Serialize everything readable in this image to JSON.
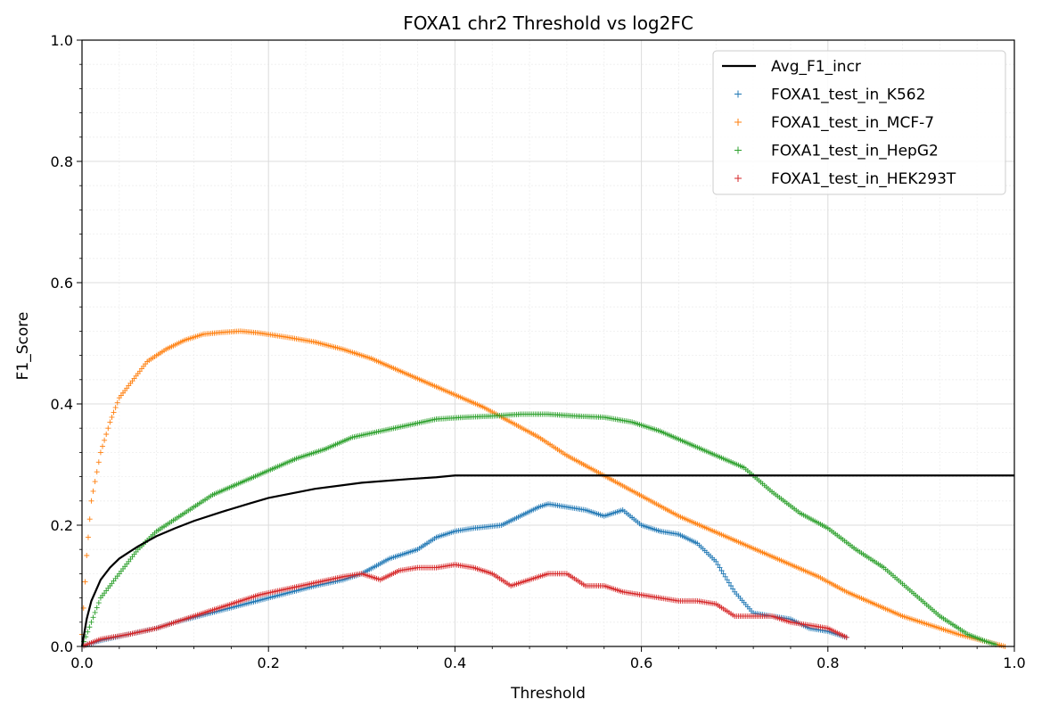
{
  "chart_data": {
    "type": "scatter",
    "title": "FOXA1 chr2 Threshold vs log2FC",
    "xlabel": "Threshold",
    "ylabel": "F1_Score",
    "xlim": [
      0.0,
      1.0
    ],
    "ylim": [
      0.0,
      1.0
    ],
    "xticks": [
      "0.0",
      "0.2",
      "0.4",
      "0.6",
      "0.8",
      "1.0"
    ],
    "yticks": [
      "0.0",
      "0.2",
      "0.4",
      "0.6",
      "0.8",
      "1.0"
    ],
    "grid": true,
    "minor_grid": true,
    "legend_position": "top-right",
    "line": {
      "name": "Avg_F1_incr",
      "color": "#000000",
      "x": [
        0.0,
        0.005,
        0.01,
        0.02,
        0.03,
        0.04,
        0.05,
        0.06,
        0.08,
        0.1,
        0.12,
        0.15,
        0.18,
        0.2,
        0.25,
        0.3,
        0.35,
        0.38,
        0.4,
        0.5,
        0.6,
        0.7,
        0.8,
        0.9,
        1.0
      ],
      "y": [
        0.0,
        0.045,
        0.075,
        0.11,
        0.13,
        0.145,
        0.155,
        0.165,
        0.182,
        0.195,
        0.207,
        0.222,
        0.236,
        0.245,
        0.26,
        0.27,
        0.276,
        0.279,
        0.282,
        0.282,
        0.282,
        0.282,
        0.282,
        0.282,
        0.282
      ]
    },
    "series": [
      {
        "name": "FOXA1_test_in_K562",
        "color": "#1f77b4",
        "x": [
          0.0,
          0.02,
          0.05,
          0.08,
          0.1,
          0.15,
          0.2,
          0.25,
          0.28,
          0.3,
          0.33,
          0.36,
          0.38,
          0.4,
          0.42,
          0.45,
          0.47,
          0.49,
          0.5,
          0.52,
          0.54,
          0.56,
          0.58,
          0.6,
          0.62,
          0.64,
          0.66,
          0.68,
          0.7,
          0.72,
          0.74,
          0.76,
          0.78,
          0.8,
          0.82
        ],
        "y": [
          0.0,
          0.01,
          0.02,
          0.03,
          0.04,
          0.06,
          0.08,
          0.1,
          0.11,
          0.12,
          0.145,
          0.16,
          0.18,
          0.19,
          0.195,
          0.2,
          0.215,
          0.23,
          0.235,
          0.23,
          0.225,
          0.215,
          0.225,
          0.2,
          0.19,
          0.185,
          0.17,
          0.14,
          0.09,
          0.055,
          0.05,
          0.045,
          0.03,
          0.025,
          0.015
        ]
      },
      {
        "name": "FOXA1_test_in_MCF-7",
        "color": "#ff7f0e",
        "x": [
          0.0,
          0.005,
          0.01,
          0.02,
          0.03,
          0.04,
          0.05,
          0.07,
          0.09,
          0.11,
          0.13,
          0.15,
          0.17,
          0.19,
          0.22,
          0.25,
          0.28,
          0.31,
          0.34,
          0.37,
          0.4,
          0.43,
          0.46,
          0.49,
          0.52,
          0.55,
          0.58,
          0.61,
          0.64,
          0.67,
          0.7,
          0.73,
          0.76,
          0.79,
          0.82,
          0.85,
          0.88,
          0.91,
          0.94,
          0.97,
          0.99
        ],
        "y": [
          0.02,
          0.15,
          0.24,
          0.32,
          0.37,
          0.41,
          0.43,
          0.47,
          0.49,
          0.505,
          0.515,
          0.518,
          0.52,
          0.517,
          0.51,
          0.502,
          0.49,
          0.475,
          0.455,
          0.435,
          0.415,
          0.395,
          0.37,
          0.345,
          0.315,
          0.29,
          0.265,
          0.24,
          0.215,
          0.195,
          0.175,
          0.155,
          0.135,
          0.115,
          0.09,
          0.07,
          0.05,
          0.035,
          0.02,
          0.008,
          0.0
        ]
      },
      {
        "name": "FOXA1_test_in_HepG2",
        "color": "#2ca02c",
        "x": [
          0.0,
          0.01,
          0.02,
          0.04,
          0.06,
          0.08,
          0.1,
          0.12,
          0.14,
          0.17,
          0.2,
          0.23,
          0.26,
          0.29,
          0.32,
          0.35,
          0.38,
          0.41,
          0.44,
          0.47,
          0.5,
          0.53,
          0.56,
          0.59,
          0.62,
          0.65,
          0.68,
          0.71,
          0.74,
          0.77,
          0.8,
          0.83,
          0.86,
          0.89,
          0.92,
          0.95,
          0.97,
          0.98
        ],
        "y": [
          0.0,
          0.04,
          0.08,
          0.12,
          0.16,
          0.19,
          0.21,
          0.23,
          0.25,
          0.27,
          0.29,
          0.31,
          0.325,
          0.345,
          0.355,
          0.365,
          0.375,
          0.378,
          0.38,
          0.383,
          0.383,
          0.38,
          0.378,
          0.37,
          0.355,
          0.335,
          0.315,
          0.295,
          0.255,
          0.22,
          0.195,
          0.16,
          0.13,
          0.09,
          0.05,
          0.02,
          0.008,
          0.003
        ]
      },
      {
        "name": "FOXA1_test_in_HEK293T",
        "color": "#d62728",
        "x": [
          0.0,
          0.02,
          0.05,
          0.08,
          0.1,
          0.13,
          0.16,
          0.19,
          0.22,
          0.25,
          0.28,
          0.3,
          0.32,
          0.34,
          0.36,
          0.38,
          0.4,
          0.42,
          0.44,
          0.46,
          0.48,
          0.5,
          0.52,
          0.54,
          0.56,
          0.58,
          0.6,
          0.62,
          0.64,
          0.66,
          0.68,
          0.7,
          0.72,
          0.74,
          0.76,
          0.78,
          0.8,
          0.82
        ],
        "y": [
          0.0,
          0.012,
          0.02,
          0.03,
          0.04,
          0.055,
          0.07,
          0.085,
          0.095,
          0.105,
          0.115,
          0.12,
          0.11,
          0.125,
          0.13,
          0.13,
          0.135,
          0.13,
          0.12,
          0.1,
          0.11,
          0.12,
          0.12,
          0.1,
          0.1,
          0.09,
          0.085,
          0.08,
          0.075,
          0.075,
          0.07,
          0.05,
          0.05,
          0.05,
          0.04,
          0.035,
          0.03,
          0.015
        ]
      }
    ]
  }
}
